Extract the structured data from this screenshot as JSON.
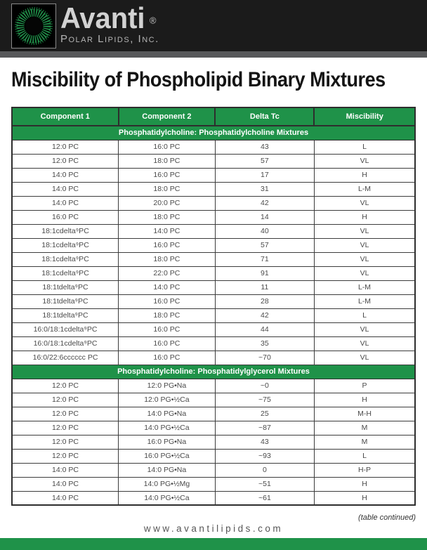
{
  "header": {
    "brand_name": "Avanti",
    "brand_reg": "®",
    "brand_subtitle": "Polar Lipids, Inc."
  },
  "page_title": "Miscibility of Phospholipid Binary Mixtures",
  "table": {
    "columns": [
      "Component 1",
      "Component 2",
      "Delta Tc",
      "Miscibility"
    ],
    "sections": [
      {
        "title": "Phosphatidylcholine: Phosphatidylcholine Mixtures",
        "rows": [
          [
            "12:0 PC",
            "16:0 PC",
            "43",
            "L"
          ],
          [
            "12:0 PC",
            "18:0 PC",
            "57",
            "VL"
          ],
          [
            "14:0 PC",
            "16:0 PC",
            "17",
            "H"
          ],
          [
            "14:0 PC",
            "18:0 PC",
            "31",
            "L-M"
          ],
          [
            "14:0 PC",
            "20:0 PC",
            "42",
            "VL"
          ],
          [
            "16:0 PC",
            "18:0 PC",
            "14",
            "H"
          ],
          [
            "18:1cdelta⁹PC",
            "14:0 PC",
            "40",
            "VL"
          ],
          [
            "18:1cdelta⁹PC",
            "16:0 PC",
            "57",
            "VL"
          ],
          [
            "18:1cdelta⁹PC",
            "18:0 PC",
            "71",
            "VL"
          ],
          [
            "18:1cdelta⁹PC",
            "22:0 PC",
            "91",
            "VL"
          ],
          [
            "18:1tdelta⁹PC",
            "14:0 PC",
            "11",
            "L-M"
          ],
          [
            "18:1tdelta⁹PC",
            "16:0 PC",
            "28",
            "L-M"
          ],
          [
            "18:1tdelta⁹PC",
            "18:0 PC",
            "42",
            "L"
          ],
          [
            "16:0/18:1cdelta⁹PC",
            "16:0 PC",
            "44",
            "VL"
          ],
          [
            "16:0/18:1cdelta⁹PC",
            "16:0 PC",
            "35",
            "VL"
          ],
          [
            "16:0/22:6cccccc PC",
            "16:0 PC",
            "~70",
            "VL"
          ]
        ]
      },
      {
        "title": "Phosphatidylcholine: Phosphatidylglycerol Mixtures",
        "rows": [
          [
            "12:0 PC",
            "12:0 PG•Na",
            "~0",
            "P"
          ],
          [
            "12:0 PC",
            "12:0 PG•½Ca",
            "~75",
            "H"
          ],
          [
            "12:0 PC",
            "14:0 PG•Na",
            "25",
            "M-H"
          ],
          [
            "12:0 PC",
            "14:0 PG•½Ca",
            "~87",
            "M"
          ],
          [
            "12:0 PC",
            "16:0 PG•Na",
            "43",
            "M"
          ],
          [
            "12:0 PC",
            "16:0 PG•½Ca",
            "~93",
            "L"
          ],
          [
            "14:0 PC",
            "14:0 PG•Na",
            "0",
            "H-P"
          ],
          [
            "14:0 PC",
            "14:0 PG•½Mg",
            "~51",
            "H"
          ],
          [
            "14:0 PC",
            "14:0 PG•½Ca",
            "~61",
            "H"
          ]
        ]
      }
    ]
  },
  "footer": {
    "continued_note": "(table continued)",
    "website": "www.avantilipids.com"
  },
  "colors": {
    "green": "#1f9249",
    "top_bar": "#1b1b1b",
    "strip_gray": "#57585a"
  }
}
